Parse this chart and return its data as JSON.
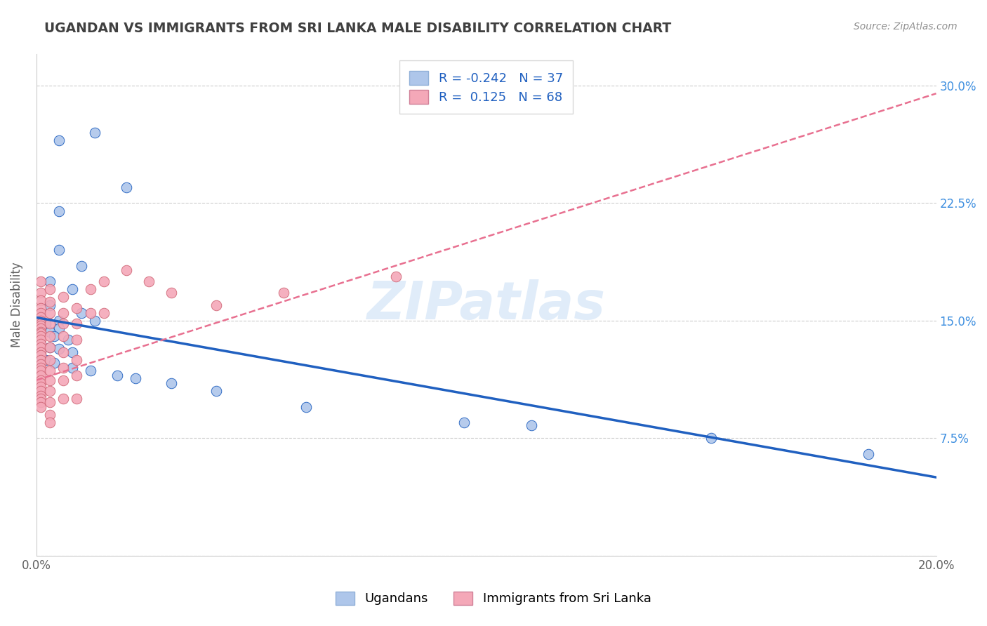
{
  "title": "UGANDAN VS IMMIGRANTS FROM SRI LANKA MALE DISABILITY CORRELATION CHART",
  "source": "Source: ZipAtlas.com",
  "ylabel": "Male Disability",
  "xlim": [
    0.0,
    0.2
  ],
  "ylim": [
    0.0,
    0.32
  ],
  "yticks": [
    0.0,
    0.075,
    0.15,
    0.225,
    0.3
  ],
  "ytick_labels": [
    "",
    "7.5%",
    "15.0%",
    "22.5%",
    "30.0%"
  ],
  "xticks": [
    0.0,
    0.05,
    0.1,
    0.15,
    0.2
  ],
  "xtick_labels": [
    "0.0%",
    "",
    "",
    "",
    "20.0%"
  ],
  "legend_ugandan": "Ugandans",
  "legend_sri_lanka": "Immigrants from Sri Lanka",
  "R_ugandan": -0.242,
  "N_ugandan": 37,
  "R_sri_lanka": 0.125,
  "N_sri_lanka": 68,
  "color_ugandan": "#aec6ea",
  "color_sri_lanka": "#f4a8b8",
  "line_color_ugandan": "#2060c0",
  "line_color_sri_lanka": "#e87090",
  "watermark": "ZIPatlas",
  "title_color": "#404040",
  "tick_color_right": "#4090e0",
  "scatter_ugandan": [
    [
      0.005,
      0.265
    ],
    [
      0.013,
      0.27
    ],
    [
      0.02,
      0.235
    ],
    [
      0.005,
      0.22
    ],
    [
      0.005,
      0.195
    ],
    [
      0.01,
      0.185
    ],
    [
      0.003,
      0.175
    ],
    [
      0.008,
      0.17
    ],
    [
      0.003,
      0.16
    ],
    [
      0.01,
      0.155
    ],
    [
      0.013,
      0.15
    ],
    [
      0.005,
      0.15
    ],
    [
      0.002,
      0.148
    ],
    [
      0.005,
      0.145
    ],
    [
      0.003,
      0.143
    ],
    [
      0.001,
      0.142
    ],
    [
      0.004,
      0.14
    ],
    [
      0.007,
      0.138
    ],
    [
      0.001,
      0.135
    ],
    [
      0.003,
      0.133
    ],
    [
      0.005,
      0.132
    ],
    [
      0.008,
      0.13
    ],
    [
      0.001,
      0.128
    ],
    [
      0.002,
      0.125
    ],
    [
      0.004,
      0.123
    ],
    [
      0.001,
      0.122
    ],
    [
      0.008,
      0.12
    ],
    [
      0.012,
      0.118
    ],
    [
      0.018,
      0.115
    ],
    [
      0.022,
      0.113
    ],
    [
      0.03,
      0.11
    ],
    [
      0.04,
      0.105
    ],
    [
      0.06,
      0.095
    ],
    [
      0.095,
      0.085
    ],
    [
      0.11,
      0.083
    ],
    [
      0.15,
      0.075
    ],
    [
      0.185,
      0.065
    ]
  ],
  "scatter_sri_lanka": [
    [
      0.001,
      0.175
    ],
    [
      0.001,
      0.168
    ],
    [
      0.001,
      0.163
    ],
    [
      0.001,
      0.158
    ],
    [
      0.001,
      0.155
    ],
    [
      0.001,
      0.152
    ],
    [
      0.001,
      0.15
    ],
    [
      0.001,
      0.148
    ],
    [
      0.001,
      0.147
    ],
    [
      0.001,
      0.145
    ],
    [
      0.001,
      0.143
    ],
    [
      0.001,
      0.142
    ],
    [
      0.001,
      0.14
    ],
    [
      0.001,
      0.138
    ],
    [
      0.001,
      0.135
    ],
    [
      0.001,
      0.133
    ],
    [
      0.001,
      0.13
    ],
    [
      0.001,
      0.128
    ],
    [
      0.001,
      0.125
    ],
    [
      0.001,
      0.122
    ],
    [
      0.001,
      0.12
    ],
    [
      0.001,
      0.118
    ],
    [
      0.001,
      0.115
    ],
    [
      0.001,
      0.112
    ],
    [
      0.001,
      0.11
    ],
    [
      0.001,
      0.108
    ],
    [
      0.001,
      0.105
    ],
    [
      0.001,
      0.102
    ],
    [
      0.001,
      0.1
    ],
    [
      0.001,
      0.098
    ],
    [
      0.001,
      0.095
    ],
    [
      0.003,
      0.17
    ],
    [
      0.003,
      0.162
    ],
    [
      0.003,
      0.155
    ],
    [
      0.003,
      0.148
    ],
    [
      0.003,
      0.14
    ],
    [
      0.003,
      0.133
    ],
    [
      0.003,
      0.125
    ],
    [
      0.003,
      0.118
    ],
    [
      0.003,
      0.112
    ],
    [
      0.003,
      0.105
    ],
    [
      0.003,
      0.098
    ],
    [
      0.003,
      0.09
    ],
    [
      0.003,
      0.085
    ],
    [
      0.006,
      0.165
    ],
    [
      0.006,
      0.155
    ],
    [
      0.006,
      0.148
    ],
    [
      0.006,
      0.14
    ],
    [
      0.006,
      0.13
    ],
    [
      0.006,
      0.12
    ],
    [
      0.006,
      0.112
    ],
    [
      0.006,
      0.1
    ],
    [
      0.009,
      0.158
    ],
    [
      0.009,
      0.148
    ],
    [
      0.009,
      0.138
    ],
    [
      0.009,
      0.125
    ],
    [
      0.009,
      0.115
    ],
    [
      0.009,
      0.1
    ],
    [
      0.012,
      0.17
    ],
    [
      0.012,
      0.155
    ],
    [
      0.015,
      0.175
    ],
    [
      0.015,
      0.155
    ],
    [
      0.02,
      0.182
    ],
    [
      0.025,
      0.175
    ],
    [
      0.03,
      0.168
    ],
    [
      0.04,
      0.16
    ],
    [
      0.055,
      0.168
    ],
    [
      0.08,
      0.178
    ]
  ]
}
